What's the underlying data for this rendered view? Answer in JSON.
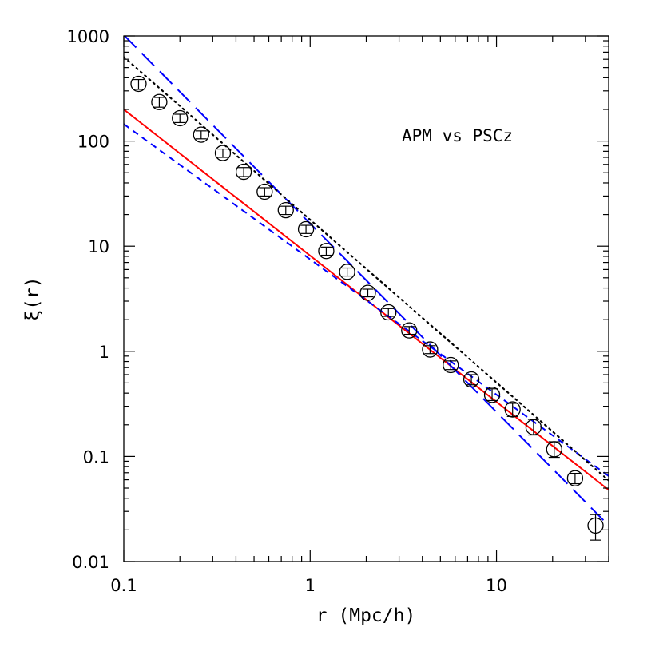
{
  "chart_data": {
    "type": "scatter",
    "title": "",
    "xlabel": "r (Mpc/h)",
    "ylabel": "ξ(r)",
    "xscale": "log",
    "yscale": "log",
    "xlim": [
      0.1,
      40
    ],
    "ylim": [
      0.01,
      1000
    ],
    "grid": false,
    "x_tick_labels": [
      "0.1",
      "1",
      "10"
    ],
    "y_tick_labels": [
      "0.01",
      "0.1",
      "1",
      "10",
      "100",
      "1000"
    ],
    "annotations": [
      {
        "text": "APM vs PSCz"
      }
    ],
    "points": [
      {
        "x": 0.12,
        "y": 350,
        "ylo": 310,
        "yhi": 385
      },
      {
        "x": 0.155,
        "y": 235,
        "ylo": 210,
        "yhi": 260
      },
      {
        "x": 0.2,
        "y": 165,
        "ylo": 150,
        "yhi": 180
      },
      {
        "x": 0.26,
        "y": 115,
        "ylo": 105,
        "yhi": 125
      },
      {
        "x": 0.34,
        "y": 77,
        "ylo": 70,
        "yhi": 84
      },
      {
        "x": 0.44,
        "y": 51,
        "ylo": 46,
        "yhi": 56
      },
      {
        "x": 0.57,
        "y": 33,
        "ylo": 30,
        "yhi": 36
      },
      {
        "x": 0.74,
        "y": 22,
        "ylo": 20,
        "yhi": 24
      },
      {
        "x": 0.95,
        "y": 14.5,
        "ylo": 13.2,
        "yhi": 15.8
      },
      {
        "x": 1.22,
        "y": 9.0,
        "ylo": 8.2,
        "yhi": 9.8
      },
      {
        "x": 1.58,
        "y": 5.7,
        "ylo": 5.2,
        "yhi": 6.2
      },
      {
        "x": 2.04,
        "y": 3.6,
        "ylo": 3.3,
        "yhi": 3.9
      },
      {
        "x": 2.63,
        "y": 2.35,
        "ylo": 2.15,
        "yhi": 2.55
      },
      {
        "x": 3.4,
        "y": 1.58,
        "ylo": 1.45,
        "yhi": 1.72
      },
      {
        "x": 4.4,
        "y": 1.04,
        "ylo": 0.95,
        "yhi": 1.13
      },
      {
        "x": 5.68,
        "y": 0.74,
        "ylo": 0.67,
        "yhi": 0.81
      },
      {
        "x": 7.33,
        "y": 0.54,
        "ylo": 0.48,
        "yhi": 0.6
      },
      {
        "x": 9.47,
        "y": 0.385,
        "ylo": 0.34,
        "yhi": 0.44
      },
      {
        "x": 12.2,
        "y": 0.28,
        "ylo": 0.24,
        "yhi": 0.32
      },
      {
        "x": 15.8,
        "y": 0.19,
        "ylo": 0.16,
        "yhi": 0.225
      },
      {
        "x": 20.4,
        "y": 0.117,
        "ylo": 0.098,
        "yhi": 0.138
      },
      {
        "x": 26.4,
        "y": 0.062,
        "ylo": 0.055,
        "yhi": 0.069
      },
      {
        "x": 34.0,
        "y": 0.022,
        "ylo": 0.016,
        "yhi": 0.028
      }
    ],
    "lines": [
      {
        "style": "solid",
        "color": "#ff0000",
        "x": [
          0.1,
          40
        ],
        "y": [
          200,
          0.048
        ]
      },
      {
        "style": "short-dashed",
        "color": "#0000ff",
        "x": [
          0.1,
          40
        ],
        "y": [
          145,
          0.065
        ]
      },
      {
        "style": "long-dashed",
        "color": "#0000ff",
        "x": [
          0.1,
          40
        ],
        "y": [
          1020,
          0.022
        ]
      },
      {
        "style": "dotted",
        "color": "#000000",
        "x": [
          0.1,
          40
        ],
        "y": [
          630,
          0.059
        ]
      }
    ]
  }
}
